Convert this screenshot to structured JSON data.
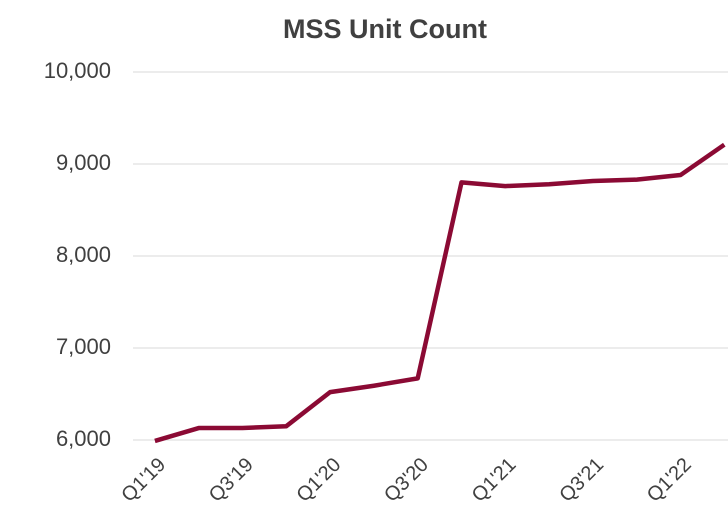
{
  "chart_data": {
    "type": "line",
    "title": "MSS Unit Count",
    "categories": [
      "Q1'19",
      null,
      "Q3'19",
      null,
      "Q1'20",
      null,
      "Q3'20",
      null,
      "Q1'21",
      null,
      "Q3'21",
      null,
      "Q1'22",
      null
    ],
    "series": [
      {
        "name": "MSS Unit Count",
        "color": "#8b0a34",
        "values": [
          5990,
          6130,
          6130,
          6150,
          6520,
          6590,
          6670,
          8800,
          8760,
          8780,
          8815,
          8830,
          8880,
          9210
        ]
      }
    ],
    "ylim": [
      6000,
      10000
    ],
    "yticks": [
      {
        "value": 6000,
        "label": "6,000"
      },
      {
        "value": 7000,
        "label": "7,000"
      },
      {
        "value": 8000,
        "label": "8,000"
      },
      {
        "value": 9000,
        "label": "9,000"
      },
      {
        "value": 10000,
        "label": "10,000"
      }
    ],
    "grid": true
  }
}
